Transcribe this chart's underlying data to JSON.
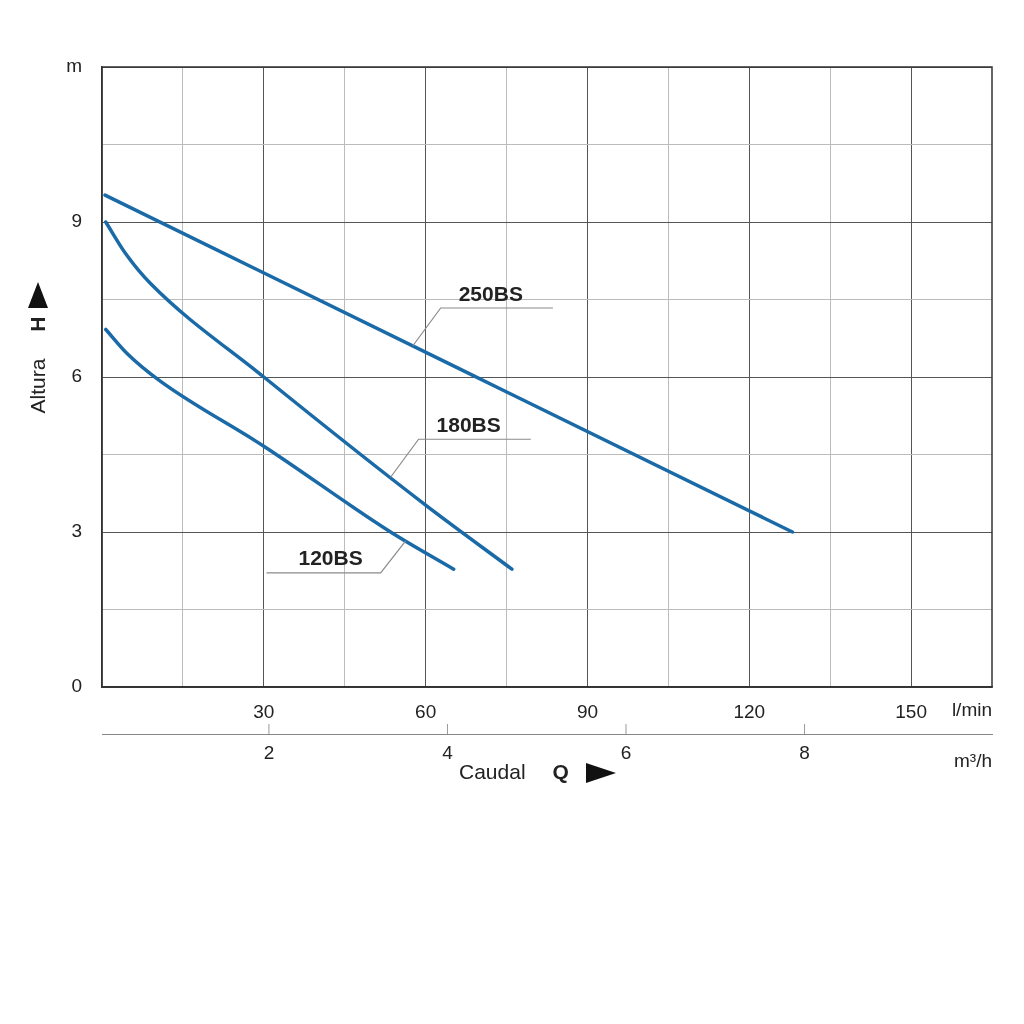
{
  "chart_data": {
    "type": "line",
    "xlabel": "Caudal Q",
    "ylabel": "Altura H",
    "xlim": [
      0,
      165
    ],
    "xticks": [
      {
        "value": 15,
        "label": null
      },
      30,
      {
        "value": 45,
        "label": null
      },
      60,
      {
        "value": 75,
        "label": null
      },
      90,
      {
        "value": 105,
        "label": null
      },
      120,
      {
        "value": 135,
        "label": null
      },
      150
    ],
    "x2lim": [
      0.13,
      10.1
    ],
    "x2ticks": [
      2,
      4,
      6,
      8
    ],
    "ylim": [
      0,
      12
    ],
    "yticks": [
      0,
      {
        "value": 1.5,
        "label": null
      },
      3,
      {
        "value": 4.5,
        "label": null
      },
      6,
      {
        "value": 7.5,
        "label": null
      },
      9,
      {
        "value": 10.5,
        "label": null
      },
      {
        "value": 12,
        "label": "m"
      }
    ],
    "grid": true,
    "legend": false,
    "marker": "none",
    "line_style": "solid",
    "series": [
      {
        "color": "#1a6aa8",
        "x": [
          0.56,
          128
        ],
        "values": [
          9.52,
          3.0
        ]
      },
      {
        "color": "#1a6aa8",
        "x": [
          0.7,
          4.3,
          8.9,
          30,
          60,
          76
        ],
        "values": [
          9.0,
          8.4,
          7.82,
          6.0,
          3.52,
          2.28
        ]
      },
      {
        "color": "#1a6aa8",
        "x": [
          0.7,
          4.6,
          10.8,
          30,
          53.5,
          65.2
        ],
        "values": [
          6.92,
          6.46,
          5.92,
          4.66,
          3.0,
          2.28
        ]
      }
    ],
    "annotations": [
      "l/min",
      "m³/h",
      {
        "text": "250BS",
        "x": 57.6,
        "y": 6.6
      },
      {
        "text": "180BS",
        "x": 53.5,
        "y": 4.06
      },
      {
        "text": "120BS",
        "x": 56.3,
        "y": 2.83
      }
    ]
  }
}
